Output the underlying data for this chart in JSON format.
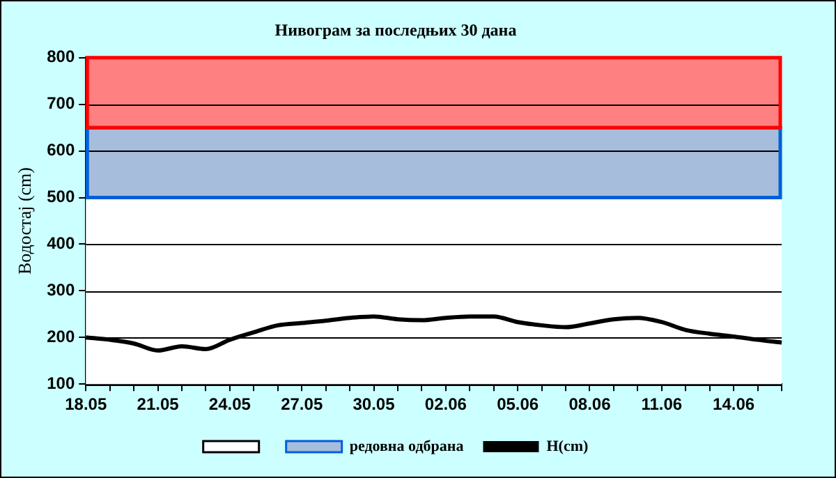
{
  "chart_data": {
    "type": "line",
    "title": "Нивограм за последњих 30 дана",
    "ylabel": "Водостај (cm)",
    "categories": [
      "18.05",
      null,
      null,
      "21.05",
      null,
      null,
      "24.05",
      null,
      null,
      "27.05",
      null,
      null,
      "30.05",
      null,
      null,
      "02.06",
      null,
      null,
      "05.06",
      null,
      null,
      "08.06",
      null,
      null,
      "11.06",
      null,
      null,
      "14.06",
      null,
      null
    ],
    "series": [
      {
        "name": "H(cm)",
        "color": "#000000",
        "values": [
          200,
          195,
          187,
          172,
          181,
          175,
          195,
          211,
          226,
          231,
          236,
          242,
          245,
          239,
          237,
          242,
          245,
          245,
          233,
          226,
          222,
          230,
          239,
          242,
          233,
          216,
          208,
          202,
          195,
          189
        ]
      }
    ],
    "ylim": [
      100,
      800
    ],
    "yticks": [
      100,
      200,
      300,
      400,
      500,
      600,
      700,
      800
    ],
    "grid": "y",
    "legend": "bottom",
    "marker": "none",
    "line_style": "solid",
    "bands": [
      {
        "axis": "y",
        "from": 100,
        "to": 500,
        "color": "#ffffff"
      },
      {
        "axis": "y",
        "from": 500,
        "to": 650,
        "label": "редовна одбрана",
        "color": "#a6bddb"
      },
      {
        "axis": "y",
        "from": 650,
        "to": 800,
        "color": "#ff8080"
      }
    ]
  }
}
